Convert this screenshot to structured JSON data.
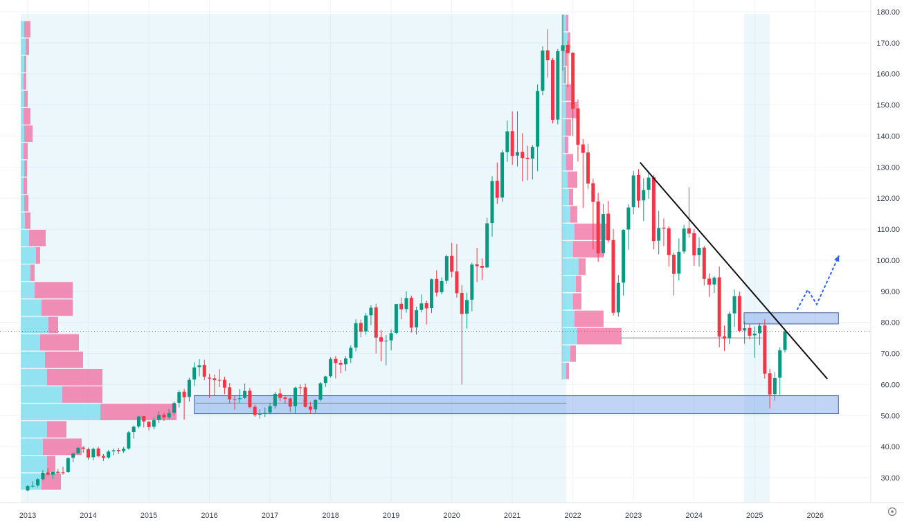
{
  "style": {
    "bg": "#ffffff",
    "grid": "#f0f3f8",
    "axis_text": "#3c4250",
    "axis_border": "#e0e3eb",
    "candle_up": "#089981",
    "candle_down": "#f23645",
    "vp_buy": "#7ddcef",
    "vp_sell": "#f06a9e",
    "range_bg": "rgba(148,211,238,0.18)",
    "box_fill": "rgba(117,160,235,0.45)",
    "box_stroke": "#44639f",
    "trendline": "#111111",
    "projection": "#2962ff",
    "price_line": "#6a6d78",
    "ref_line": "#8a8e98"
  },
  "axes": {
    "y_ticks": [
      180,
      170,
      160,
      150,
      140,
      130,
      120,
      110,
      100,
      90,
      80,
      70,
      60,
      50,
      40,
      30
    ],
    "y_labels": [
      "180.00",
      "170.00",
      "160.00",
      "150.00",
      "140.00",
      "130.00",
      "120.00",
      "110.00",
      "100.00",
      "90.00",
      "80.00",
      "70.00",
      "60.00",
      "50.00",
      "40.00",
      "30.00"
    ],
    "x_labels": [
      "2013",
      "2014",
      "2015",
      "2016",
      "2017",
      "2018",
      "2019",
      "2020",
      "2021",
      "2022",
      "2023",
      "2024",
      "2025",
      "2026"
    ]
  },
  "chart_data": {
    "type": "candlestick",
    "interval": "monthly",
    "start": "2013-01",
    "ylim": [
      22,
      183.8
    ],
    "candles": [
      [
        25.9,
        27.6,
        25.6,
        27.3
      ],
      [
        27.3,
        28.8,
        26.8,
        27.4
      ],
      [
        27.5,
        29.8,
        27.0,
        29.5
      ],
      [
        29.5,
        32.4,
        29.2,
        31.6
      ],
      [
        31.7,
        33.1,
        30.7,
        31.0
      ],
      [
        31.0,
        32.0,
        29.6,
        31.8
      ],
      [
        31.9,
        32.8,
        31.0,
        31.6
      ],
      [
        31.7,
        33.5,
        31.0,
        31.6
      ],
      [
        31.8,
        36.5,
        31.6,
        36.3
      ],
      [
        36.4,
        38.1,
        35.0,
        37.8
      ],
      [
        37.9,
        39.9,
        37.5,
        39.6
      ],
      [
        39.7,
        40.1,
        38.0,
        39.3
      ],
      [
        39.2,
        39.7,
        35.8,
        36.5
      ],
      [
        36.6,
        39.7,
        35.6,
        39.3
      ],
      [
        39.4,
        39.9,
        36.6,
        36.9
      ],
      [
        37.0,
        37.6,
        35.4,
        36.4
      ],
      [
        36.5,
        38.9,
        36.1,
        38.4
      ],
      [
        38.5,
        39.4,
        37.2,
        38.8
      ],
      [
        38.9,
        39.6,
        37.6,
        38.5
      ],
      [
        38.6,
        39.9,
        38.0,
        39.3
      ],
      [
        39.4,
        45.0,
        39.0,
        44.6
      ],
      [
        44.7,
        46.8,
        42.6,
        46.4
      ],
      [
        46.5,
        49.9,
        45.9,
        49.7
      ],
      [
        49.8,
        49.9,
        46.2,
        48.1
      ],
      [
        48.0,
        48.3,
        45.3,
        46.3
      ],
      [
        46.4,
        49.3,
        45.6,
        48.5
      ],
      [
        48.6,
        51.4,
        47.6,
        50.2
      ],
      [
        50.3,
        51.0,
        48.3,
        49.4
      ],
      [
        49.5,
        52.1,
        48.9,
        50.8
      ],
      [
        50.9,
        54.6,
        50.0,
        54.0
      ],
      [
        54.1,
        58.2,
        52.6,
        57.6
      ],
      [
        57.7,
        58.6,
        48.7,
        55.9
      ],
      [
        56.0,
        62.2,
        54.5,
        61.5
      ],
      [
        61.6,
        67.2,
        59.5,
        65.5
      ],
      [
        65.6,
        68.2,
        62.6,
        66.2
      ],
      [
        66.3,
        68.0,
        61.4,
        62.5
      ],
      [
        62.2,
        63.5,
        55.7,
        61.9
      ],
      [
        62.0,
        63.2,
        56.4,
        61.4
      ],
      [
        61.5,
        64.9,
        59.2,
        61.4
      ],
      [
        61.5,
        62.5,
        56.9,
        59.0
      ],
      [
        59.1,
        60.5,
        53.9,
        55.2
      ],
      [
        55.3,
        56.4,
        51.9,
        55.2
      ],
      [
        55.3,
        58.5,
        54.1,
        55.6
      ],
      [
        55.7,
        60.3,
        55.4,
        57.9
      ],
      [
        58.0,
        58.9,
        52.3,
        52.7
      ],
      [
        52.8,
        53.5,
        49.6,
        50.2
      ],
      [
        50.3,
        52.0,
        49.0,
        50.7
      ],
      [
        50.8,
        52.6,
        49.5,
        50.8
      ],
      [
        51.0,
        54.0,
        50.4,
        53.0
      ],
      [
        53.1,
        57.6,
        52.2,
        57.0
      ],
      [
        57.1,
        58.7,
        54.7,
        55.7
      ],
      [
        55.8,
        56.5,
        53.8,
        55.4
      ],
      [
        55.5,
        55.8,
        51.1,
        52.9
      ],
      [
        53.0,
        59.3,
        50.8,
        59.0
      ],
      [
        59.1,
        60.0,
        56.8,
        59.0
      ],
      [
        59.1,
        60.3,
        52.6,
        52.8
      ],
      [
        52.9,
        54.4,
        50.6,
        51.9
      ],
      [
        52.0,
        55.3,
        50.9,
        55.0
      ],
      [
        55.1,
        60.8,
        54.7,
        60.4
      ],
      [
        60.5,
        62.8,
        59.2,
        62.6
      ],
      [
        62.7,
        68.8,
        62.2,
        68.2
      ],
      [
        68.3,
        69.2,
        62.0,
        66.9
      ],
      [
        67.0,
        67.9,
        63.6,
        66.4
      ],
      [
        66.5,
        69.1,
        64.3,
        68.4
      ],
      [
        68.5,
        72.6,
        66.9,
        71.8
      ],
      [
        71.9,
        81.0,
        70.7,
        79.7
      ],
      [
        79.8,
        80.9,
        75.2,
        77.0
      ],
      [
        77.1,
        83.0,
        76.0,
        82.2
      ],
      [
        82.3,
        85.5,
        79.1,
        84.7
      ],
      [
        84.8,
        86.0,
        70.0,
        75.1
      ],
      [
        75.2,
        77.5,
        67.5,
        73.8
      ],
      [
        73.9,
        75.9,
        66.2,
        74.1
      ],
      [
        74.2,
        77.7,
        71.0,
        76.5
      ],
      [
        76.6,
        86.0,
        76.2,
        85.9
      ],
      [
        86.0,
        88.0,
        81.0,
        84.2
      ],
      [
        84.3,
        90.0,
        83.1,
        87.8
      ],
      [
        87.9,
        88.6,
        76.7,
        78.3
      ],
      [
        78.4,
        85.0,
        76.1,
        83.9
      ],
      [
        84.0,
        89.0,
        83.2,
        86.1
      ],
      [
        86.2,
        87.0,
        79.3,
        84.5
      ],
      [
        84.6,
        94.1,
        83.0,
        93.9
      ],
      [
        94.0,
        96.8,
        88.3,
        89.6
      ],
      [
        89.7,
        94.5,
        89.0,
        93.3
      ],
      [
        93.4,
        101.8,
        92.4,
        101.3
      ],
      [
        101.4,
        105.6,
        94.5,
        96.3
      ],
      [
        96.4,
        105.2,
        88.0,
        89.4
      ],
      [
        89.5,
        92.0,
        60.0,
        82.7
      ],
      [
        82.8,
        89.6,
        78.0,
        87.2
      ],
      [
        87.3,
        99.2,
        83.6,
        98.6
      ],
      [
        98.7,
        104.0,
        93.0,
        98.1
      ],
      [
        98.2,
        100.6,
        93.6,
        97.6
      ],
      [
        97.7,
        113.7,
        97.5,
        111.9
      ],
      [
        112.0,
        127.1,
        107.6,
        125.5
      ],
      [
        125.6,
        131.5,
        118.1,
        120.1
      ],
      [
        120.2,
        135.5,
        118.8,
        134.7
      ],
      [
        134.8,
        145.0,
        131.7,
        141.5
      ],
      [
        141.6,
        147.9,
        130.7,
        133.6
      ],
      [
        133.7,
        148.0,
        130.2,
        134.8
      ],
      [
        134.9,
        140.9,
        125.4,
        132.9
      ],
      [
        133.0,
        136.9,
        125.7,
        132.6
      ],
      [
        132.7,
        137.1,
        126.0,
        136.5
      ],
      [
        136.6,
        156.6,
        128.7,
        154.5
      ],
      [
        154.6,
        168.9,
        153.2,
        167.5
      ],
      [
        167.6,
        174.4,
        158.8,
        164.4
      ],
      [
        164.5,
        165.1,
        144.1,
        145.2
      ],
      [
        145.3,
        168.0,
        143.8,
        167.3
      ],
      [
        167.4,
        179.1,
        161.0,
        169.2
      ],
      [
        169.3,
        170.6,
        155.7,
        166.7
      ],
      [
        166.8,
        167.0,
        140.0,
        148.8
      ],
      [
        148.9,
        151.8,
        131.8,
        137.2
      ],
      [
        137.3,
        139.0,
        116.8,
        134.6
      ],
      [
        134.7,
        137.5,
        122.9,
        124.7
      ],
      [
        124.8,
        126.2,
        103.5,
        118.8
      ],
      [
        118.9,
        121.7,
        99.5,
        102.2
      ],
      [
        102.3,
        118.1,
        101.2,
        114.9
      ],
      [
        115.0,
        119.1,
        105.7,
        106.4
      ],
      [
        106.5,
        110.0,
        82.2,
        83.1
      ],
      [
        83.2,
        95.2,
        81.9,
        92.7
      ],
      [
        92.8,
        110.0,
        88.7,
        109.8
      ],
      [
        109.9,
        118.0,
        103.4,
        117.0
      ],
      [
        117.1,
        128.7,
        114.8,
        127.3
      ],
      [
        127.4,
        129.3,
        116.9,
        119.2
      ],
      [
        119.3,
        126.4,
        112.6,
        122.6
      ],
      [
        122.7,
        128.6,
        119.8,
        126.6
      ],
      [
        126.7,
        127.5,
        103.5,
        106.2
      ],
      [
        106.3,
        115.9,
        101.9,
        110.4
      ],
      [
        110.5,
        113.5,
        104.6,
        110.2
      ],
      [
        110.3,
        111.0,
        98.0,
        101.7
      ],
      [
        101.8,
        102.5,
        88.7,
        95.6
      ],
      [
        95.7,
        107.0,
        93.5,
        102.7
      ],
      [
        102.8,
        111.4,
        102.1,
        110.2
      ],
      [
        110.3,
        123.4,
        107.3,
        108.6
      ],
      [
        108.7,
        110.1,
        98.2,
        101.6
      ],
      [
        101.7,
        107.4,
        98.0,
        104.0
      ],
      [
        104.1,
        104.6,
        91.9,
        94.0
      ],
      [
        94.1,
        95.8,
        88.2,
        92.1
      ],
      [
        92.2,
        94.9,
        89.5,
        94.4
      ],
      [
        94.5,
        98.0,
        72.0,
        75.4
      ],
      [
        75.5,
        79.0,
        70.8,
        74.8
      ],
      [
        74.9,
        83.5,
        73.0,
        82.8
      ],
      [
        82.9,
        90.6,
        78.5,
        88.4
      ],
      [
        88.5,
        89.9,
        76.8,
        77.3
      ],
      [
        77.4,
        80.3,
        73.1,
        78.1
      ],
      [
        78.2,
        79.6,
        74.5,
        75.7
      ],
      [
        75.8,
        78.7,
        68.6,
        76.4
      ],
      [
        76.5,
        79.8,
        72.7,
        78.9
      ],
      [
        79.0,
        81.0,
        61.9,
        63.5
      ],
      [
        63.6,
        65.0,
        52.3,
        56.8
      ],
      [
        56.9,
        63.9,
        54.8,
        62.1
      ],
      [
        62.2,
        72.0,
        56.7,
        71.0
      ],
      [
        71.1,
        77.8,
        70.3,
        77.1
      ]
    ],
    "overlays": {
      "support_zones": [
        {
          "m_start": 33.0,
          "m_end": 160.6,
          "price_top": 56.4,
          "price_bottom": 50.6
        },
        {
          "m_start": 141.9,
          "m_end": 160.6,
          "price_top": 83.1,
          "price_bottom": 79.5
        }
      ],
      "ref_segments": [
        {
          "price": 54.0,
          "m_start": 33.2,
          "m_end": 106.7
        },
        {
          "price": 75.0,
          "m_start": 117.5,
          "m_end": 145.5
        }
      ],
      "trendline": {
        "m1": 121.3,
        "price1": 131.5,
        "m2": 158.4,
        "price2": 61.8
      },
      "current_price_line": {
        "price": 77.1
      },
      "projection_path": [
        [
          152.4,
          84.0
        ],
        [
          154.5,
          90.5
        ],
        [
          156.3,
          85.8
        ],
        [
          160.7,
          101.5
        ]
      ],
      "background_ranges": [
        {
          "m_start": -1.37,
          "m_end": 106.7
        },
        {
          "m_start": 141.9,
          "m_end": 147.0
        }
      ],
      "volume_profiles": [
        {
          "anchor_m": -1.37,
          "price_top": 177.0,
          "row_step": 5.6,
          "anchor_line": false,
          "rows": [
            [
              5,
              9
            ],
            [
              7,
              5
            ],
            [
              5,
              3
            ],
            [
              4,
              4
            ],
            [
              5,
              5
            ],
            [
              4,
              10
            ],
            [
              5,
              12
            ],
            [
              4,
              6
            ],
            [
              5,
              4
            ],
            [
              4,
              5
            ],
            [
              5,
              6
            ],
            [
              6,
              8
            ],
            [
              12,
              24
            ],
            [
              22,
              6
            ],
            [
              14,
              6
            ],
            [
              20,
              55
            ],
            [
              30,
              45
            ],
            [
              40,
              14
            ],
            [
              28,
              56
            ],
            [
              35,
              55
            ],
            [
              38,
              80
            ],
            [
              60,
              58
            ],
            [
              115,
              110
            ],
            [
              38,
              28
            ],
            [
              32,
              56
            ],
            [
              38,
              12
            ],
            [
              30,
              28
            ]
          ]
        },
        {
          "anchor_m": 105.85,
          "price_top": 179.0,
          "row_step": 5.6,
          "anchor_line": true,
          "rows": [
            [
              6,
              3
            ],
            [
              8,
              4
            ],
            [
              4,
              3
            ],
            [
              3,
              3
            ],
            [
              5,
              8
            ],
            [
              6,
              16
            ],
            [
              5,
              8
            ],
            [
              4,
              5
            ],
            [
              6,
              10
            ],
            [
              8,
              14
            ],
            [
              10,
              6
            ],
            [
              12,
              10
            ],
            [
              18,
              50
            ],
            [
              16,
              44
            ],
            [
              24,
              10
            ],
            [
              20,
              8
            ],
            [
              16,
              12
            ],
            [
              18,
              42
            ],
            [
              22,
              64
            ],
            [
              12,
              8
            ],
            [
              6,
              4
            ]
          ]
        }
      ]
    }
  },
  "controls": {
    "corner_icon": "pane-settings"
  }
}
